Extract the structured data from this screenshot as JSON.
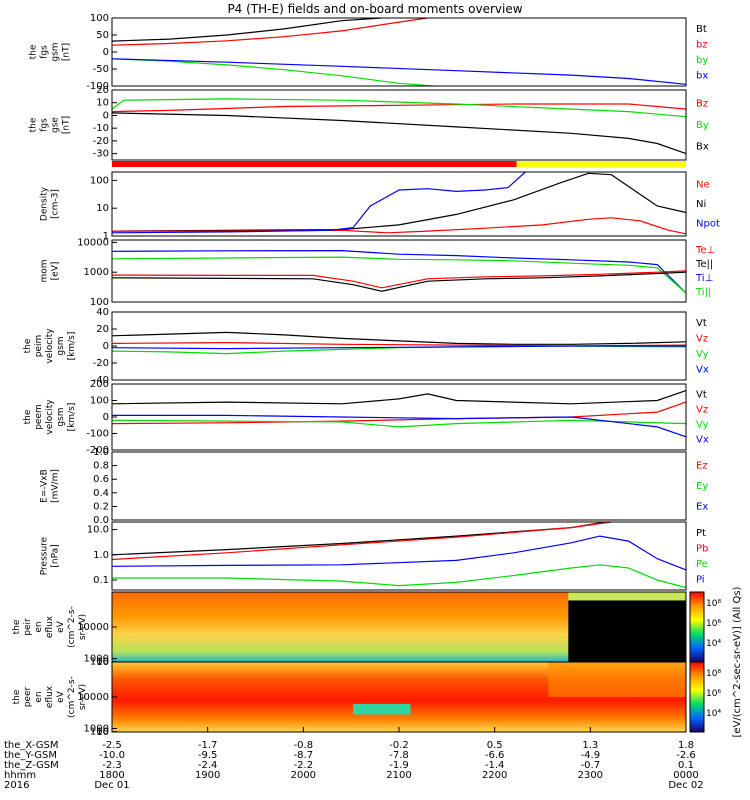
{
  "figure": {
    "title": "P4 (TH-E) fields and on-board moments overview"
  },
  "colors": {
    "black": "#000000",
    "red": "#ff0000",
    "green": "#00dd00",
    "blue": "#0000ff",
    "bar_red": "#ff0000",
    "bar_yellow": "#ffff00"
  },
  "chart_data": [
    {
      "type": "line",
      "panel": "fgs_gsm",
      "ylabel_lines": [
        "the",
        "fgs",
        "gsm",
        "[nT]"
      ],
      "ylim": [
        -100,
        100
      ],
      "yticks": [
        100,
        50,
        0,
        -50,
        -100
      ],
      "legend": [
        {
          "name": "Bt",
          "color": "#000000"
        },
        {
          "name": "bz",
          "color": "#ff0000"
        },
        {
          "name": "by",
          "color": "#00dd00"
        },
        {
          "name": "bx",
          "color": "#0000ff"
        }
      ],
      "series": [
        {
          "name": "Bt",
          "color": "#000000",
          "x": [
            0,
            0.1,
            0.2,
            0.3,
            0.4,
            0.47
          ],
          "y": [
            32,
            38,
            50,
            68,
            92,
            105
          ]
        },
        {
          "name": "bz",
          "color": "#ff0000",
          "x": [
            0,
            0.1,
            0.2,
            0.3,
            0.4,
            0.5,
            0.55
          ],
          "y": [
            20,
            25,
            33,
            45,
            62,
            88,
            104
          ]
        },
        {
          "name": "by",
          "color": "#00dd00",
          "x": [
            0,
            0.1,
            0.2,
            0.3,
            0.4,
            0.5,
            0.56
          ],
          "y": [
            -20,
            -27,
            -38,
            -52,
            -70,
            -92,
            -104
          ]
        },
        {
          "name": "bx",
          "color": "#0000ff",
          "x": [
            0,
            0.2,
            0.4,
            0.6,
            0.8,
            0.9,
            1.0
          ],
          "y": [
            -20,
            -30,
            -42,
            -55,
            -68,
            -78,
            -95
          ]
        }
      ]
    },
    {
      "type": "line",
      "panel": "fgs_gse",
      "ylabel_lines": [
        "the",
        "fgs",
        "gse",
        "[nT]"
      ],
      "ylim": [
        -35,
        20
      ],
      "yticks": [
        20,
        10,
        0,
        -10,
        -20,
        -30
      ],
      "legend": [
        {
          "name": "Bz",
          "color": "#ff0000"
        },
        {
          "name": "By",
          "color": "#00dd00"
        },
        {
          "name": "Bx",
          "color": "#000000"
        }
      ],
      "series": [
        {
          "name": "Bz",
          "color": "#ff0000",
          "x": [
            0,
            0.1,
            0.3,
            0.5,
            0.7,
            0.9,
            0.95,
            1.0
          ],
          "y": [
            3,
            4,
            7,
            8,
            9,
            9,
            7,
            5
          ]
        },
        {
          "name": "By",
          "color": "#00dd00",
          "x": [
            0,
            0.02,
            0.2,
            0.4,
            0.6,
            0.8,
            0.9,
            1.0
          ],
          "y": [
            5,
            12,
            13,
            12,
            9,
            5,
            3,
            -1
          ]
        },
        {
          "name": "Bx",
          "color": "#000000",
          "x": [
            0,
            0.2,
            0.4,
            0.6,
            0.8,
            0.9,
            0.95,
            1.0
          ],
          "y": [
            2,
            0,
            -4,
            -9,
            -14,
            -18,
            -22,
            -30
          ]
        }
      ]
    },
    {
      "type": "bar",
      "panel": "mode_bar",
      "segments": [
        {
          "from": 0,
          "to": 0.705,
          "color": "#ff0000"
        },
        {
          "from": 0.705,
          "to": 1.0,
          "color": "#ffff00"
        }
      ]
    },
    {
      "type": "line",
      "panel": "density",
      "scale": "log",
      "ylabel_lines": [
        "Density",
        "[cm-3]"
      ],
      "ylim": [
        1,
        200
      ],
      "yticks": [
        1,
        10,
        100
      ],
      "ytick_labels": [
        "1",
        "10",
        "100"
      ],
      "legend": [
        {
          "name": "Ne",
          "color": "#ff0000"
        },
        {
          "name": "Ni",
          "color": "#000000"
        },
        {
          "name": "Npot",
          "color": "#0000ff"
        }
      ],
      "series": [
        {
          "name": "Ni",
          "color": "#000000",
          "x": [
            0,
            0.2,
            0.4,
            0.5,
            0.6,
            0.7,
            0.78,
            0.83,
            0.87,
            0.9,
            0.95,
            1.0
          ],
          "y": [
            1.5,
            1.6,
            1.7,
            2.5,
            6,
            20,
            80,
            180,
            160,
            60,
            12,
            7
          ]
        },
        {
          "name": "Ne",
          "color": "#ff0000",
          "x": [
            0,
            0.2,
            0.4,
            0.48,
            0.55,
            0.65,
            0.75,
            0.83,
            0.87,
            0.92,
            0.97,
            1.0
          ],
          "y": [
            1.5,
            1.5,
            1.6,
            1.3,
            1.5,
            1.9,
            2.5,
            4.0,
            4.5,
            3.5,
            1.6,
            1.2
          ]
        },
        {
          "name": "Npot",
          "color": "#0000ff",
          "x": [
            0,
            0.2,
            0.38,
            0.42,
            0.45,
            0.5,
            0.55,
            0.6,
            0.65,
            0.69,
            0.72
          ],
          "y": [
            1.3,
            1.4,
            1.6,
            2.0,
            12,
            45,
            50,
            40,
            45,
            55,
            220
          ]
        }
      ]
    },
    {
      "type": "line",
      "panel": "temperature",
      "scale": "log",
      "ylabel_lines": [
        "mom",
        "[eV]"
      ],
      "ylim": [
        100,
        12000
      ],
      "yticks": [
        100,
        1000,
        10000
      ],
      "ytick_labels": [
        "100",
        "1000",
        "10000"
      ],
      "legend": [
        {
          "name": "Te⊥",
          "color": "#ff0000"
        },
        {
          "name": "Te||",
          "color": "#000000"
        },
        {
          "name": "Ti⊥",
          "color": "#0000ff"
        },
        {
          "name": "Ti||",
          "color": "#00dd00"
        }
      ],
      "series": [
        {
          "name": "Ti⊥",
          "color": "#0000ff",
          "x": [
            0,
            0.2,
            0.4,
            0.5,
            0.6,
            0.7,
            0.8,
            0.9,
            0.95,
            1.0
          ],
          "y": [
            5000,
            5200,
            5300,
            4000,
            3600,
            3000,
            2600,
            2200,
            1800,
            200
          ]
        },
        {
          "name": "Ti||",
          "color": "#00dd00",
          "x": [
            0,
            0.2,
            0.4,
            0.5,
            0.6,
            0.7,
            0.8,
            0.9,
            0.95,
            1.0
          ],
          "y": [
            2800,
            3000,
            3200,
            2700,
            2600,
            2400,
            2000,
            1700,
            1400,
            200
          ]
        },
        {
          "name": "Te⊥",
          "color": "#ff0000",
          "x": [
            0,
            0.2,
            0.35,
            0.42,
            0.47,
            0.55,
            0.65,
            0.75,
            0.85,
            0.95,
            1.0
          ],
          "y": [
            800,
            780,
            780,
            500,
            300,
            600,
            700,
            750,
            850,
            1000,
            1100
          ]
        },
        {
          "name": "Te||",
          "color": "#000000",
          "x": [
            0,
            0.2,
            0.35,
            0.42,
            0.47,
            0.55,
            0.65,
            0.75,
            0.85,
            0.95,
            1.0
          ],
          "y": [
            650,
            620,
            600,
            380,
            230,
            500,
            600,
            650,
            750,
            900,
            1000
          ]
        }
      ]
    },
    {
      "type": "line",
      "panel": "peim_velocity",
      "ylabel_lines": [
        "the",
        "peim",
        "velocity",
        "gsm",
        "[km/s]"
      ],
      "ylim": [
        -40,
        40
      ],
      "yticks": [
        40,
        20,
        0,
        -20,
        -40
      ],
      "legend": [
        {
          "name": "Vt",
          "color": "#000000"
        },
        {
          "name": "Vz",
          "color": "#ff0000"
        },
        {
          "name": "Vy",
          "color": "#00dd00"
        },
        {
          "name": "Vx",
          "color": "#0000ff"
        }
      ],
      "series": [
        {
          "name": "Vt",
          "color": "#000000",
          "x": [
            0,
            0.1,
            0.2,
            0.3,
            0.4,
            0.5,
            0.6,
            0.7,
            0.8,
            0.9,
            1.0
          ],
          "y": [
            12,
            14,
            16,
            13,
            9,
            6,
            3,
            2,
            2,
            3,
            5
          ]
        },
        {
          "name": "Vz",
          "color": "#ff0000",
          "x": [
            0,
            0.2,
            0.4,
            0.6,
            0.8,
            1.0
          ],
          "y": [
            3,
            4,
            2,
            1,
            0,
            1
          ]
        },
        {
          "name": "Vy",
          "color": "#00dd00",
          "x": [
            0,
            0.1,
            0.2,
            0.3,
            0.4,
            0.5,
            0.6,
            0.8,
            1.0
          ],
          "y": [
            -6,
            -7,
            -9,
            -6,
            -4,
            -2,
            -1,
            0,
            -1
          ]
        },
        {
          "name": "Vx",
          "color": "#0000ff",
          "x": [
            0,
            0.2,
            0.4,
            0.6,
            0.8,
            1.0
          ],
          "y": [
            -2,
            -3,
            -2,
            -1,
            0,
            0
          ]
        }
      ]
    },
    {
      "type": "line",
      "panel": "peem_velocity",
      "ylabel_lines": [
        "the",
        "peem",
        "velocity",
        "gsm",
        "[km/s]"
      ],
      "ylim": [
        -200,
        200
      ],
      "yticks": [
        200,
        100,
        0,
        -100,
        -200
      ],
      "legend": [
        {
          "name": "Vt",
          "color": "#000000"
        },
        {
          "name": "Vz",
          "color": "#ff0000"
        },
        {
          "name": "Vy",
          "color": "#00dd00"
        },
        {
          "name": "Vx",
          "color": "#0000ff"
        }
      ],
      "series": [
        {
          "name": "Vt",
          "color": "#000000",
          "x": [
            0,
            0.2,
            0.4,
            0.5,
            0.55,
            0.6,
            0.8,
            0.95,
            1.0
          ],
          "y": [
            80,
            90,
            80,
            110,
            140,
            100,
            80,
            100,
            160
          ]
        },
        {
          "name": "Vz",
          "color": "#ff0000",
          "x": [
            0,
            0.2,
            0.4,
            0.6,
            0.8,
            0.95,
            1.0
          ],
          "y": [
            -40,
            -35,
            -25,
            -10,
            0,
            30,
            90
          ]
        },
        {
          "name": "Vy",
          "color": "#00dd00",
          "x": [
            0,
            0.2,
            0.4,
            0.5,
            0.6,
            0.8,
            1.0
          ],
          "y": [
            -20,
            -25,
            -30,
            -60,
            -40,
            -20,
            -40
          ]
        },
        {
          "name": "Vx",
          "color": "#0000ff",
          "x": [
            0,
            0.2,
            0.4,
            0.6,
            0.8,
            0.95,
            1.0
          ],
          "y": [
            10,
            10,
            0,
            -10,
            0,
            -60,
            -120
          ]
        }
      ]
    },
    {
      "type": "line",
      "panel": "efield",
      "ylabel_lines": [
        "E=-VxB",
        "[mV/m]"
      ],
      "ylim": [
        0,
        1.0
      ],
      "yticks": [
        1.0,
        0.8,
        0.6,
        0.4,
        0.2,
        0.0
      ],
      "ytick_labels": [
        "1.0",
        "0.8",
        "0.6",
        "0.4",
        "0.2",
        "0.0"
      ],
      "legend": [
        {
          "name": "Ez",
          "color": "#ff0000"
        },
        {
          "name": "Ey",
          "color": "#00dd00"
        },
        {
          "name": "Ex",
          "color": "#0000ff"
        }
      ],
      "series": []
    },
    {
      "type": "line",
      "panel": "pressure",
      "scale": "log",
      "ylabel_lines": [
        "Pressure",
        "[nPa]"
      ],
      "ylim": [
        0.04,
        20
      ],
      "yticks": [
        0.1,
        1.0,
        10.0
      ],
      "ytick_labels": [
        "0.1",
        "1.0",
        "10.0"
      ],
      "legend": [
        {
          "name": "Pt",
          "color": "#000000"
        },
        {
          "name": "Pb",
          "color": "#ff0000"
        },
        {
          "name": "Pe",
          "color": "#00dd00"
        },
        {
          "name": "Pi",
          "color": "#0000ff"
        }
      ],
      "series": [
        {
          "name": "Pt",
          "color": "#000000",
          "x": [
            0,
            0.2,
            0.4,
            0.6,
            0.8,
            0.86
          ],
          "y": [
            1.0,
            1.6,
            2.8,
            5.5,
            12,
            20
          ]
        },
        {
          "name": "Pb",
          "color": "#ff0000",
          "x": [
            0,
            0.2,
            0.4,
            0.6,
            0.8,
            0.87
          ],
          "y": [
            0.65,
            1.2,
            2.5,
            5.0,
            12,
            20
          ]
        },
        {
          "name": "Pi",
          "color": "#0000ff",
          "x": [
            0,
            0.2,
            0.4,
            0.6,
            0.7,
            0.8,
            0.85,
            0.9,
            0.95,
            1.0
          ],
          "y": [
            0.35,
            0.38,
            0.4,
            0.6,
            1.2,
            3.0,
            5.5,
            3.5,
            0.7,
            0.25
          ]
        },
        {
          "name": "Pe",
          "color": "#00dd00",
          "x": [
            0,
            0.2,
            0.4,
            0.5,
            0.6,
            0.7,
            0.8,
            0.85,
            0.9,
            0.95,
            1.0
          ],
          "y": [
            0.12,
            0.12,
            0.09,
            0.06,
            0.08,
            0.15,
            0.3,
            0.4,
            0.3,
            0.1,
            0.05
          ]
        }
      ]
    },
    {
      "type": "heatmap",
      "panel": "peir_spec",
      "ylabel_lines": [
        "the",
        "peir",
        "en",
        "eflux",
        "eV",
        "(cm^2-s-",
        "sr-eV)"
      ],
      "yticks": [
        10,
        100,
        1000,
        10000
      ],
      "ytick_labels": [
        "10",
        "100",
        "1000",
        "10000"
      ],
      "ylim": [
        7,
        20000
      ]
    },
    {
      "type": "heatmap",
      "panel": "peer_spec",
      "ylabel_lines": [
        "the",
        "peer",
        "en",
        "eflux",
        "eV",
        "(cm^2-s-",
        "sr-eV)"
      ],
      "yticks": [
        10,
        100,
        1000,
        10000
      ],
      "ytick_labels": [
        "10",
        "100",
        "1000",
        "10000"
      ],
      "ylim": [
        7,
        20000
      ]
    }
  ],
  "colorbar": {
    "label": "[eV/(cm^2-sec-sr-eV)] (All Qs)",
    "upper_ticks": [
      "10⁸",
      "10⁶",
      "10⁴"
    ],
    "lower_ticks": [
      "10⁸",
      "10⁶",
      "10⁴"
    ]
  },
  "xaxis": {
    "row_labels": [
      "the_X-GSM",
      "the_Y-GSM",
      "the_Z-GSM",
      "hhmm",
      "2016"
    ],
    "ticks": [
      {
        "x": 0.0,
        "values": [
          "-2.5",
          "-10.0",
          "-2.3",
          "1800",
          "Dec 01"
        ]
      },
      {
        "x": 0.2,
        "values": [
          "-1.7",
          "-9.5",
          "-2.4",
          "1900",
          ""
        ]
      },
      {
        "x": 0.4,
        "values": [
          "-0.8",
          "-8.7",
          "-2.2",
          "2000",
          ""
        ]
      },
      {
        "x": 0.6,
        "values": [
          "-0.2",
          "-7.8",
          "-1.9",
          "2100",
          ""
        ]
      },
      {
        "x": 0.8,
        "values": [
          "0.5",
          "-6.6",
          "-1.4",
          "2200",
          ""
        ]
      },
      {
        "x": 1.0,
        "values": [
          "1.3",
          "-4.9",
          "-0.7",
          "2300",
          ""
        ]
      },
      {
        "x": 1.2,
        "values": [
          "1.8",
          "-2.6",
          "0.1",
          "0000",
          "Dec 02"
        ]
      }
    ],
    "x_span": [
      0,
      1.2
    ]
  }
}
